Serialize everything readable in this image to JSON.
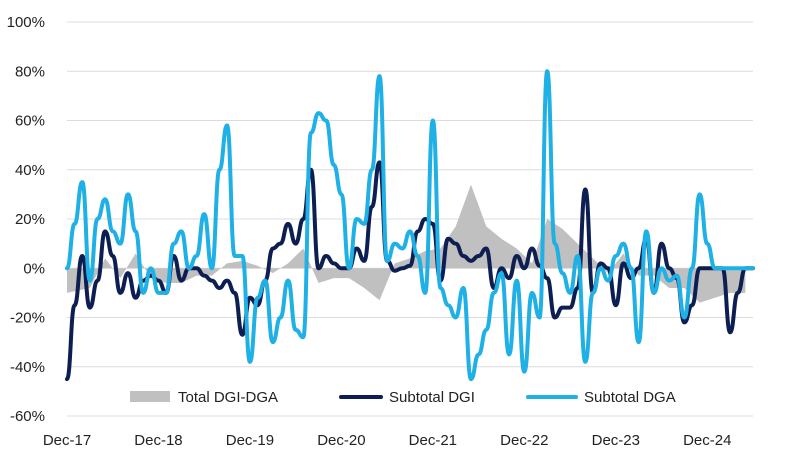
{
  "chart_data": {
    "type": "line",
    "title": "",
    "xlabel": "",
    "ylabel": "",
    "x_ticks": [
      "Dec-17",
      "Dec-18",
      "Dec-19",
      "Dec-20",
      "Dec-21",
      "Dec-22",
      "Dec-23",
      "Dec-24"
    ],
    "y_ticks": [
      "100%",
      "80%",
      "60%",
      "40%",
      "20%",
      "0%",
      "-20%",
      "-40%",
      "-60%"
    ],
    "ylim": [
      -60,
      100
    ],
    "xlim": [
      0,
      90
    ],
    "grid": "horizontal",
    "legend_position": "bottom",
    "colors": {
      "total": "#c0c0c0",
      "dgi": "#0d1e52",
      "dga": "#1fb0e6",
      "grid": "#dcdcdc"
    },
    "series": [
      {
        "name": "Total DGI-DGA",
        "style": "area",
        "x": [
          0,
          3,
          5,
          7,
          9,
          11,
          13,
          15,
          17,
          19,
          21,
          23,
          25,
          27,
          29,
          31,
          33,
          35,
          37,
          39,
          41,
          43,
          45,
          47,
          49,
          51,
          53,
          55,
          57,
          59,
          61,
          63,
          65,
          67,
          69,
          71,
          73,
          75,
          77,
          79,
          81,
          83,
          85,
          87,
          89
        ],
        "values": [
          -10,
          -8,
          4,
          -4,
          6,
          -4,
          -6,
          -6,
          -3,
          -3,
          2,
          3,
          1,
          -2,
          2,
          8,
          -6,
          -4,
          -4,
          -8,
          -13,
          2,
          4,
          7,
          8,
          17,
          34,
          17,
          12,
          8,
          2,
          20,
          16,
          10,
          4,
          -2,
          6,
          -3,
          -3,
          -8,
          -8,
          -14,
          -12,
          -10,
          -10
        ]
      },
      {
        "name": "Subtotal DGI",
        "style": "line",
        "x": [
          0,
          1,
          2,
          3,
          4,
          5,
          6,
          7,
          8,
          9,
          10,
          11,
          12,
          13,
          14,
          15,
          16,
          17,
          18,
          19,
          20,
          21,
          22,
          23,
          24,
          25,
          26,
          27,
          28,
          29,
          30,
          31,
          32,
          33,
          34,
          35,
          36,
          37,
          38,
          39,
          40,
          41,
          42,
          43,
          44,
          45,
          46,
          47,
          48,
          49,
          50,
          51,
          52,
          53,
          54,
          55,
          56,
          57,
          58,
          59,
          60,
          61,
          62,
          63,
          64,
          65,
          66,
          67,
          68,
          69,
          70,
          71,
          72,
          73,
          74,
          75,
          76,
          77,
          78,
          79,
          80,
          81,
          82,
          83,
          84,
          85,
          86,
          87,
          88,
          89,
          90
        ],
        "values": [
          -45,
          -15,
          5,
          -16,
          -5,
          15,
          5,
          -10,
          -2,
          -12,
          -5,
          -3,
          -5,
          -10,
          5,
          -5,
          0,
          0,
          -3,
          -5,
          -8,
          -5,
          -10,
          -27,
          -12,
          -15,
          -5,
          8,
          10,
          18,
          10,
          20,
          40,
          0,
          5,
          2,
          0,
          0,
          8,
          3,
          25,
          43,
          3,
          -1,
          0,
          1,
          15,
          20,
          18,
          -5,
          12,
          10,
          5,
          3,
          5,
          8,
          -8,
          0,
          -4,
          5,
          0,
          8,
          1,
          -4,
          -20,
          -16,
          -16,
          -8,
          32,
          -10,
          2,
          0,
          -15,
          2,
          -4,
          0,
          12,
          -10,
          10,
          0,
          -4,
          -22,
          -15,
          0,
          0,
          0,
          0,
          -26,
          -10,
          0,
          0
        ],
        "note_x_offset": true
      },
      {
        "name": "Subtotal DGA",
        "style": "line",
        "x": [
          0,
          1,
          2,
          3,
          4,
          5,
          6,
          7,
          8,
          9,
          10,
          11,
          12,
          13,
          14,
          15,
          16,
          17,
          18,
          19,
          20,
          21,
          22,
          23,
          24,
          25,
          26,
          27,
          28,
          29,
          30,
          31,
          32,
          33,
          34,
          35,
          36,
          37,
          38,
          39,
          40,
          41,
          42,
          43,
          44,
          45,
          46,
          47,
          48,
          49,
          50,
          51,
          52,
          53,
          54,
          55,
          56,
          57,
          58,
          59,
          60,
          61,
          62,
          63,
          64,
          65,
          66,
          67,
          68,
          69,
          70,
          71,
          72,
          73,
          74,
          75,
          76,
          77,
          78,
          79,
          80,
          81,
          82,
          83,
          84,
          85,
          86,
          87,
          88,
          89,
          90
        ],
        "values": [
          0,
          18,
          35,
          -5,
          20,
          28,
          15,
          10,
          30,
          15,
          -10,
          0,
          -10,
          -10,
          10,
          15,
          0,
          5,
          22,
          0,
          40,
          58,
          5,
          5,
          -38,
          -12,
          -5,
          -30,
          -20,
          -5,
          -25,
          -28,
          55,
          63,
          60,
          42,
          30,
          0,
          20,
          18,
          40,
          78,
          3,
          10,
          8,
          15,
          5,
          -10,
          60,
          -8,
          -15,
          -20,
          -8,
          -45,
          -35,
          -25,
          -10,
          -2,
          -35,
          -5,
          -42,
          -10,
          -20,
          80,
          10,
          -2,
          -10,
          5,
          -38,
          -10,
          0,
          -5,
          5,
          10,
          0,
          -30,
          15,
          -10,
          0,
          -5,
          -3,
          -20,
          0,
          30,
          10,
          0,
          0,
          0,
          0,
          0,
          0
        ],
        "note_x_offset": true
      }
    ]
  },
  "legend": [
    {
      "label": "Total DGI-DGA",
      "swatch": "area"
    },
    {
      "label": "Subtotal DGI",
      "swatch": "line"
    },
    {
      "label": "Subtotal DGA",
      "swatch": "line"
    }
  ]
}
